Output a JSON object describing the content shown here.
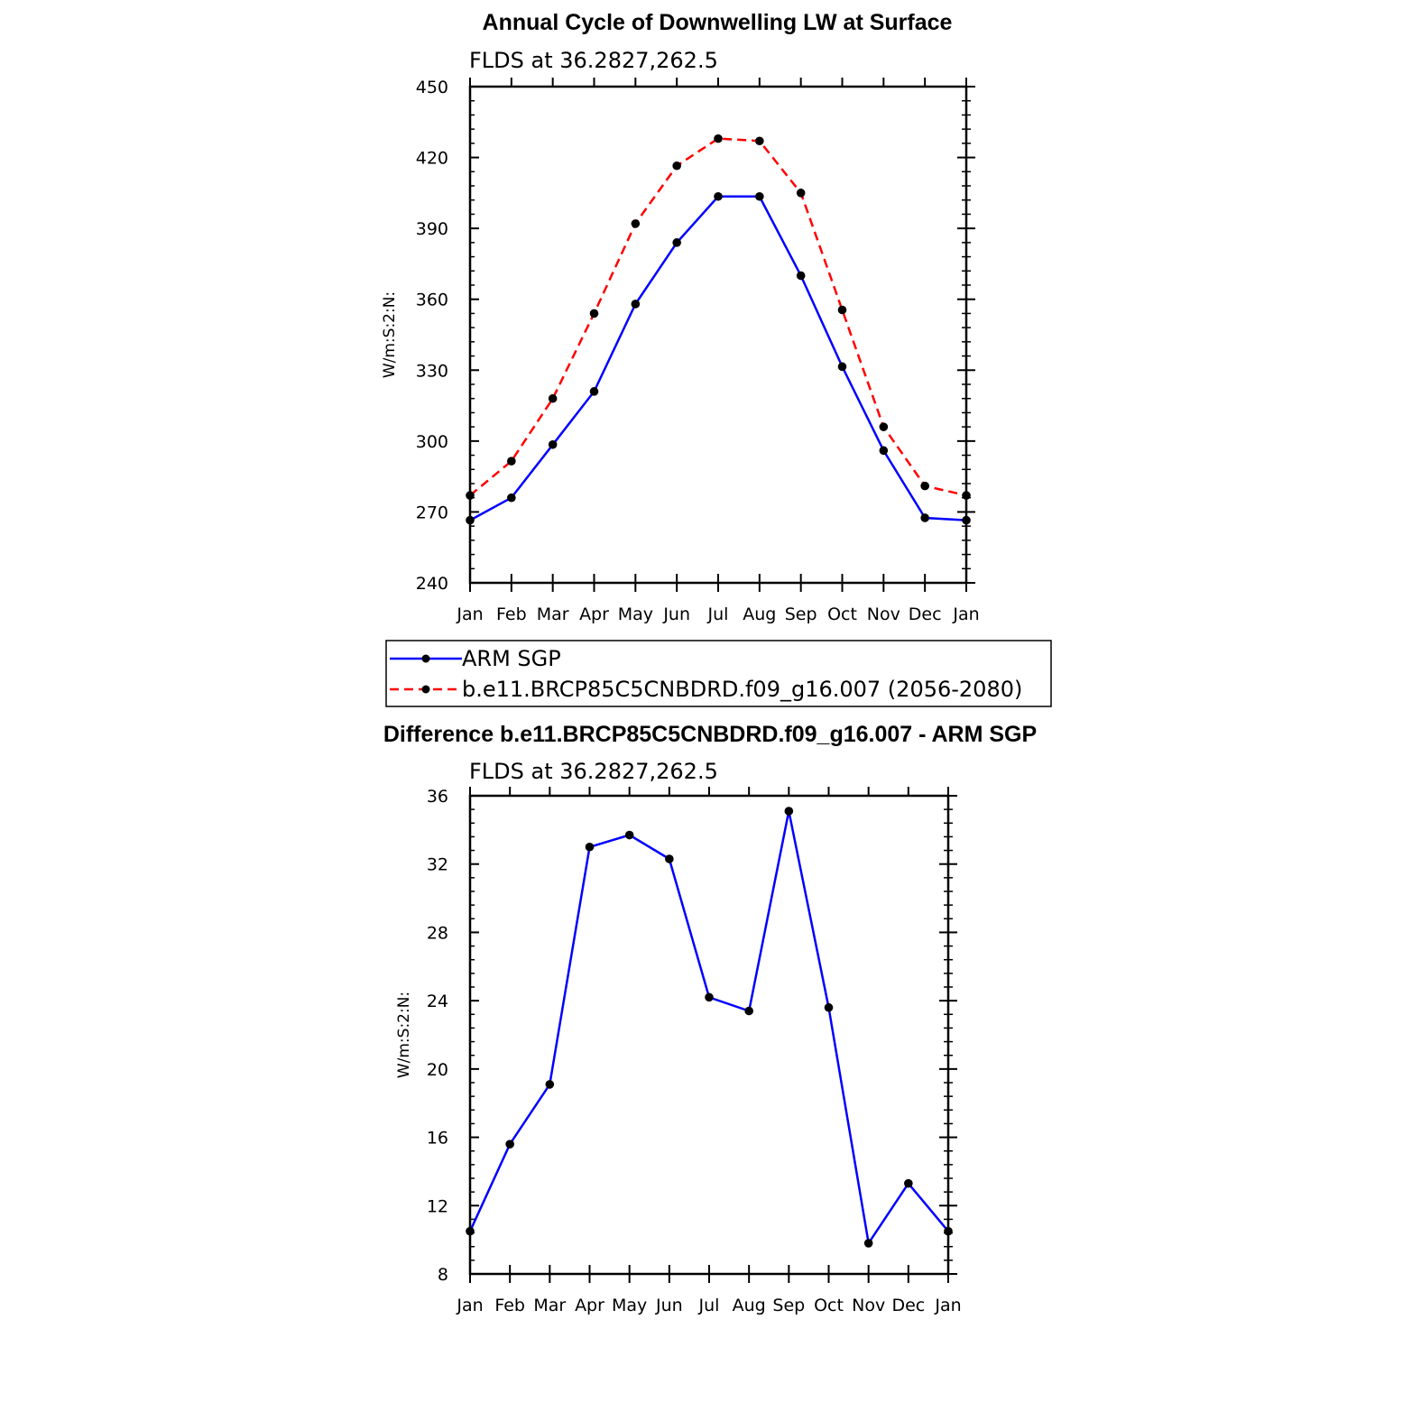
{
  "chart_data": [
    {
      "type": "line",
      "title": "Annual Cycle of Downwelling LW at Surface",
      "subtitle": "FLDS at 36.2827,262.5",
      "ylabel": "W/m:S:2:N:",
      "xlabel": "",
      "categories": [
        "Jan",
        "Feb",
        "Mar",
        "Apr",
        "May",
        "Jun",
        "Jul",
        "Aug",
        "Sep",
        "Oct",
        "Nov",
        "Dec",
        "Jan"
      ],
      "ylim": [
        240,
        450
      ],
      "yticks": [
        240,
        270,
        300,
        330,
        360,
        390,
        420,
        450
      ],
      "series": [
        {
          "name": "ARM SGP",
          "color": "#0000ff",
          "dashed": false,
          "values": [
            266.5,
            276,
            298.5,
            321,
            358,
            384,
            403.5,
            403.5,
            370,
            331.5,
            296,
            267.5,
            266.5
          ]
        },
        {
          "name": "b.e11.BRCP85C5CNBDRD.f09_g16.007 (2056-2080)",
          "color": "#ff0000",
          "dashed": true,
          "values": [
            277,
            291.5,
            318,
            354,
            392,
            416.5,
            428,
            427,
            405,
            355.5,
            306,
            281,
            277
          ]
        }
      ],
      "legend": "below"
    },
    {
      "type": "line",
      "title": "Difference b.e11.BRCP85C5CNBDRD.f09_g16.007 - ARM SGP",
      "subtitle": "FLDS at 36.2827,262.5",
      "ylabel": "W/m:S:2:N:",
      "xlabel": "",
      "categories": [
        "Jan",
        "Feb",
        "Mar",
        "Apr",
        "May",
        "Jun",
        "Jul",
        "Aug",
        "Sep",
        "Oct",
        "Nov",
        "Dec",
        "Jan"
      ],
      "ylim": [
        8,
        36
      ],
      "yticks": [
        8,
        12,
        16,
        20,
        24,
        28,
        32,
        36
      ],
      "series": [
        {
          "color": "#0000ff",
          "dashed": false,
          "values": [
            10.5,
            15.6,
            19.1,
            33,
            33.7,
            32.3,
            24.2,
            23.4,
            35.1,
            23.6,
            9.8,
            13.3,
            10.5
          ]
        }
      ]
    }
  ]
}
